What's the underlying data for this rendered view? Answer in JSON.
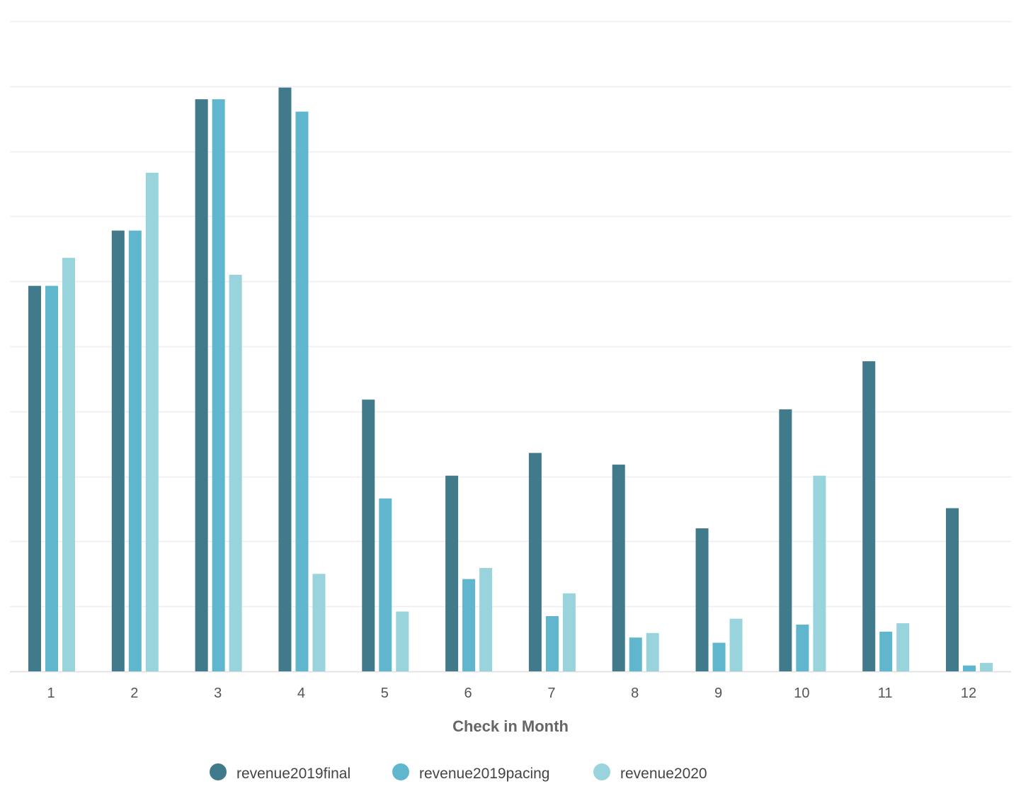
{
  "chart_data": {
    "type": "bar",
    "title": "",
    "xlabel": "Check in Month",
    "ylabel": "",
    "ylim": [
      0,
      10
    ],
    "grid": true,
    "legend_placement": "bottom-center",
    "categories": [
      "1",
      "2",
      "3",
      "4",
      "5",
      "6",
      "7",
      "8",
      "9",
      "10",
      "11",
      "12"
    ],
    "series": [
      {
        "name": "revenue2019final",
        "color": "#417a8b",
        "values": [
          5.93,
          6.78,
          8.8,
          8.98,
          4.18,
          3.01,
          3.36,
          3.18,
          2.2,
          4.03,
          4.77,
          2.51
        ]
      },
      {
        "name": "revenue2019pacing",
        "color": "#5fb6cd",
        "values": [
          5.93,
          6.78,
          8.8,
          8.61,
          2.66,
          1.42,
          0.85,
          0.52,
          0.44,
          0.72,
          0.61,
          0.09
        ]
      },
      {
        "name": "revenue2020",
        "color": "#99d4dd",
        "values": [
          6.36,
          7.67,
          6.1,
          1.5,
          0.92,
          1.59,
          1.2,
          0.59,
          0.81,
          3.01,
          0.74,
          0.13
        ]
      }
    ]
  }
}
